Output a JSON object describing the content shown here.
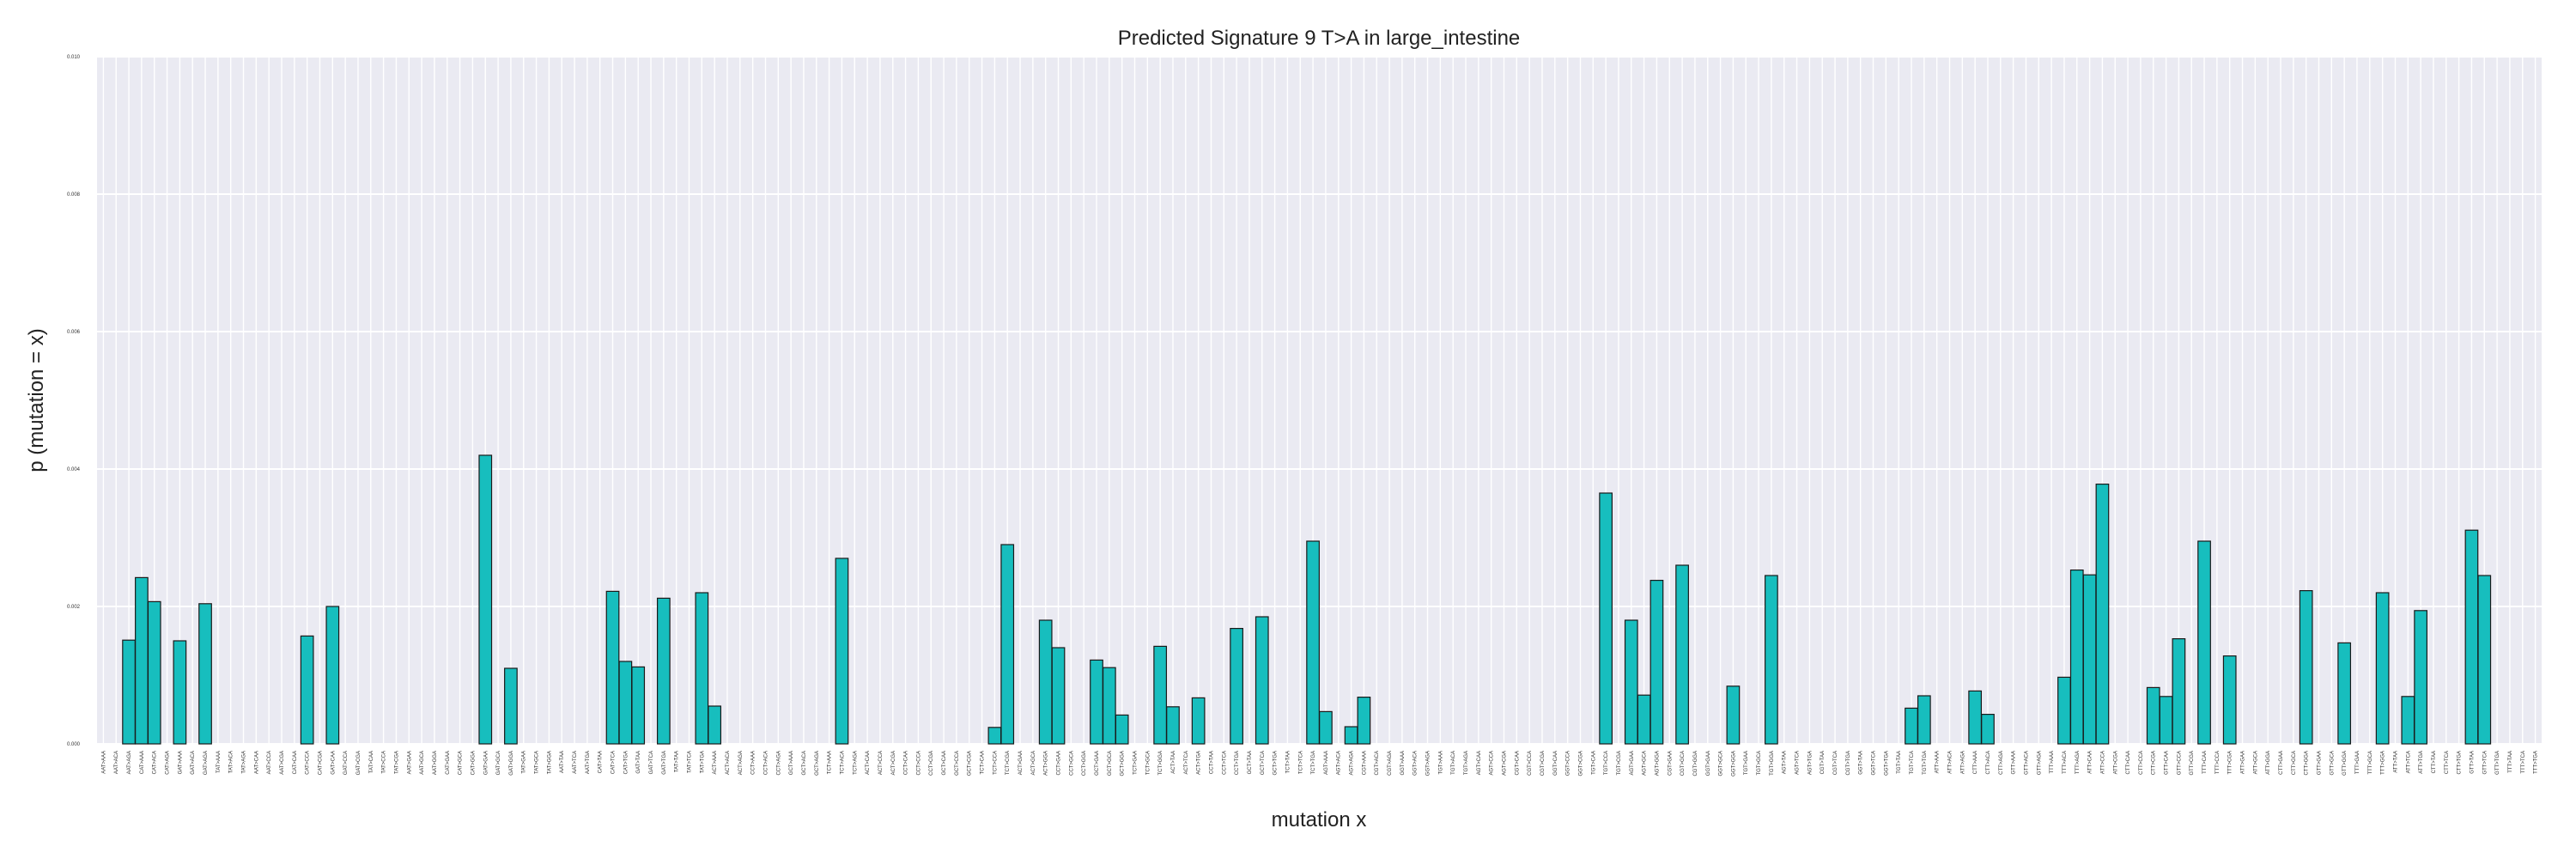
{
  "chart_data": {
    "type": "bar",
    "title": "Predicted Signature 9 T>A in large_intestine",
    "xlabel": "mutation x",
    "ylabel": "p (mutation = x)",
    "ylim": [
      0,
      0.01
    ],
    "yticks": [
      "0.000",
      "0.002",
      "0.004",
      "0.006",
      "0.008",
      "0.010"
    ],
    "grid": true,
    "colors": {
      "bar": "#17bebe",
      "edge": "#1a1a1a",
      "plot_bg": "#eaeaf2",
      "grid": "#ffffff"
    },
    "bars": [
      {
        "x": "AAT>AAA",
        "y": 0
      },
      {
        "x": "AAT>ACA",
        "y": 0
      },
      {
        "x": "AAT>AGA",
        "y": 0.00151
      },
      {
        "x": "CAT>AAA",
        "y": 0.00242
      },
      {
        "x": "CAT>ACA",
        "y": 0.00207
      },
      {
        "x": "CAT>AGA",
        "y": 0
      },
      {
        "x": "GAT>AAA",
        "y": 0.0015
      },
      {
        "x": "GAT>ACA",
        "y": 0
      },
      {
        "x": "GAT>AGA",
        "y": 0.00204
      },
      {
        "x": "TAT>AAA",
        "y": 0
      },
      {
        "x": "TAT>ACA",
        "y": 0
      },
      {
        "x": "TAT>AGA",
        "y": 0
      },
      {
        "x": "AAT>CAA",
        "y": 0
      },
      {
        "x": "AAT>CCA",
        "y": 0
      },
      {
        "x": "AAT>CGA",
        "y": 0
      },
      {
        "x": "CAT>CAA",
        "y": 0
      },
      {
        "x": "CAT>CCA",
        "y": 0.00157
      },
      {
        "x": "CAT>CGA",
        "y": 0
      },
      {
        "x": "GAT>CAA",
        "y": 0.002
      },
      {
        "x": "GAT>CCA",
        "y": 0
      },
      {
        "x": "GAT>CGA",
        "y": 0
      },
      {
        "x": "TAT>CAA",
        "y": 0
      },
      {
        "x": "TAT>CCA",
        "y": 0
      },
      {
        "x": "TAT>CGA",
        "y": 0
      },
      {
        "x": "AAT>GAA",
        "y": 0
      },
      {
        "x": "AAT>GCA",
        "y": 0
      },
      {
        "x": "AAT>GGA",
        "y": 0
      },
      {
        "x": "CAT>GAA",
        "y": 0
      },
      {
        "x": "CAT>GCA",
        "y": 0
      },
      {
        "x": "CAT>GGA",
        "y": 0
      },
      {
        "x": "GAT>GAA",
        "y": 0.0042
      },
      {
        "x": "GAT>GCA",
        "y": 0
      },
      {
        "x": "GAT>GGA",
        "y": 0.0011
      },
      {
        "x": "TAT>GAA",
        "y": 0
      },
      {
        "x": "TAT>GCA",
        "y": 0
      },
      {
        "x": "TAT>GGA",
        "y": 0
      },
      {
        "x": "AAT>TAA",
        "y": 0
      },
      {
        "x": "AAT>TCA",
        "y": 0
      },
      {
        "x": "AAT>TGA",
        "y": 0
      },
      {
        "x": "CAT>TAA",
        "y": 0
      },
      {
        "x": "CAT>TCA",
        "y": 0.00222
      },
      {
        "x": "CAT>TGA",
        "y": 0.0012
      },
      {
        "x": "GAT>TAA",
        "y": 0.00112
      },
      {
        "x": "GAT>TCA",
        "y": 0
      },
      {
        "x": "GAT>TGA",
        "y": 0.00212
      },
      {
        "x": "TAT>TAA",
        "y": 0
      },
      {
        "x": "TAT>TCA",
        "y": 0
      },
      {
        "x": "TAT>TGA",
        "y": 0.0022
      },
      {
        "x": "ACT>AAA",
        "y": 0.00055
      },
      {
        "x": "ACT>ACA",
        "y": 0
      },
      {
        "x": "ACT>AGA",
        "y": 0
      },
      {
        "x": "CCT>AAA",
        "y": 0
      },
      {
        "x": "CCT>ACA",
        "y": 0
      },
      {
        "x": "CCT>AGA",
        "y": 0
      },
      {
        "x": "GCT>AAA",
        "y": 0
      },
      {
        "x": "GCT>ACA",
        "y": 0
      },
      {
        "x": "GCT>AGA",
        "y": 0
      },
      {
        "x": "TCT>AAA",
        "y": 0
      },
      {
        "x": "TCT>ACA",
        "y": 0.0027
      },
      {
        "x": "TCT>AGA",
        "y": 0
      },
      {
        "x": "ACT>CAA",
        "y": 0
      },
      {
        "x": "ACT>CCA",
        "y": 0
      },
      {
        "x": "ACT>CGA",
        "y": 0
      },
      {
        "x": "CCT>CAA",
        "y": 0
      },
      {
        "x": "CCT>CCA",
        "y": 0
      },
      {
        "x": "CCT>CGA",
        "y": 0
      },
      {
        "x": "GCT>CAA",
        "y": 0
      },
      {
        "x": "GCT>CCA",
        "y": 0
      },
      {
        "x": "GCT>CGA",
        "y": 0
      },
      {
        "x": "TCT>CAA",
        "y": 0
      },
      {
        "x": "TCT>CCA",
        "y": 0.00024
      },
      {
        "x": "TCT>CGA",
        "y": 0.0029
      },
      {
        "x": "ACT>GAA",
        "y": 0
      },
      {
        "x": "ACT>GCA",
        "y": 0
      },
      {
        "x": "ACT>GGA",
        "y": 0.0018
      },
      {
        "x": "CCT>GAA",
        "y": 0.0014
      },
      {
        "x": "CCT>GCA",
        "y": 0
      },
      {
        "x": "CCT>GGA",
        "y": 0
      },
      {
        "x": "GCT>GAA",
        "y": 0.00122
      },
      {
        "x": "GCT>GCA",
        "y": 0.00111
      },
      {
        "x": "GCT>GGA",
        "y": 0.00042
      },
      {
        "x": "TCT>GAA",
        "y": 0
      },
      {
        "x": "TCT>GCA",
        "y": 0
      },
      {
        "x": "TCT>GGA",
        "y": 0.00142
      },
      {
        "x": "ACT>TAA",
        "y": 0.00054
      },
      {
        "x": "ACT>TCA",
        "y": 0
      },
      {
        "x": "ACT>TGA",
        "y": 0.00067
      },
      {
        "x": "CCT>TAA",
        "y": 0
      },
      {
        "x": "CCT>TCA",
        "y": 0
      },
      {
        "x": "CCT>TGA",
        "y": 0.00168
      },
      {
        "x": "GCT>TAA",
        "y": 0
      },
      {
        "x": "GCT>TCA",
        "y": 0.00185
      },
      {
        "x": "GCT>TGA",
        "y": 0
      },
      {
        "x": "TCT>TAA",
        "y": 0
      },
      {
        "x": "TCT>TCA",
        "y": 0
      },
      {
        "x": "TCT>TGA",
        "y": 0.00295
      },
      {
        "x": "AGT>AAA",
        "y": 0.00047
      },
      {
        "x": "AGT>ACA",
        "y": 0
      },
      {
        "x": "AGT>AGA",
        "y": 0.00025
      },
      {
        "x": "CGT>AAA",
        "y": 0.00068
      },
      {
        "x": "CGT>ACA",
        "y": 0
      },
      {
        "x": "CGT>AGA",
        "y": 0
      },
      {
        "x": "GGT>AAA",
        "y": 0
      },
      {
        "x": "GGT>ACA",
        "y": 0
      },
      {
        "x": "GGT>AGA",
        "y": 0
      },
      {
        "x": "TGT>AAA",
        "y": 0
      },
      {
        "x": "TGT>ACA",
        "y": 0
      },
      {
        "x": "TGT>AGA",
        "y": 0
      },
      {
        "x": "AGT>CAA",
        "y": 0
      },
      {
        "x": "AGT>CCA",
        "y": 0
      },
      {
        "x": "AGT>CGA",
        "y": 0
      },
      {
        "x": "CGT>CAA",
        "y": 0
      },
      {
        "x": "CGT>CCA",
        "y": 0
      },
      {
        "x": "CGT>CGA",
        "y": 0
      },
      {
        "x": "GGT>CAA",
        "y": 0
      },
      {
        "x": "GGT>CCA",
        "y": 0
      },
      {
        "x": "GGT>CGA",
        "y": 0
      },
      {
        "x": "TGT>CAA",
        "y": 0
      },
      {
        "x": "TGT>CCA",
        "y": 0.00365
      },
      {
        "x": "TGT>CGA",
        "y": 0
      },
      {
        "x": "AGT>GAA",
        "y": 0.0018
      },
      {
        "x": "AGT>GCA",
        "y": 0.00071
      },
      {
        "x": "AGT>GGA",
        "y": 0.00238
      },
      {
        "x": "CGT>GAA",
        "y": 0
      },
      {
        "x": "CGT>GCA",
        "y": 0.0026
      },
      {
        "x": "CGT>GGA",
        "y": 0
      },
      {
        "x": "GGT>GAA",
        "y": 0
      },
      {
        "x": "GGT>GCA",
        "y": 0
      },
      {
        "x": "GGT>GGA",
        "y": 0.00084
      },
      {
        "x": "TGT>GAA",
        "y": 0
      },
      {
        "x": "TGT>GCA",
        "y": 0
      },
      {
        "x": "TGT>GGA",
        "y": 0.00245
      },
      {
        "x": "AGT>TAA",
        "y": 0
      },
      {
        "x": "AGT>TCA",
        "y": 0
      },
      {
        "x": "AGT>TGA",
        "y": 0
      },
      {
        "x": "CGT>TAA",
        "y": 0
      },
      {
        "x": "CGT>TCA",
        "y": 0
      },
      {
        "x": "CGT>TGA",
        "y": 0
      },
      {
        "x": "GGT>TAA",
        "y": 0
      },
      {
        "x": "GGT>TCA",
        "y": 0
      },
      {
        "x": "GGT>TGA",
        "y": 0
      },
      {
        "x": "TGT>TAA",
        "y": 0
      },
      {
        "x": "TGT>TCA",
        "y": 0.00052
      },
      {
        "x": "TGT>TGA",
        "y": 0.0007
      },
      {
        "x": "ATT>AAA",
        "y": 0
      },
      {
        "x": "ATT>ACA",
        "y": 0
      },
      {
        "x": "ATT>AGA",
        "y": 0
      },
      {
        "x": "CTT>AAA",
        "y": 0.00077
      },
      {
        "x": "CTT>ACA",
        "y": 0.00043
      },
      {
        "x": "CTT>AGA",
        "y": 0
      },
      {
        "x": "GTT>AAA",
        "y": 0
      },
      {
        "x": "GTT>ACA",
        "y": 0
      },
      {
        "x": "GTT>AGA",
        "y": 0
      },
      {
        "x": "TTT>AAA",
        "y": 0
      },
      {
        "x": "TTT>ACA",
        "y": 0.00097
      },
      {
        "x": "TTT>AGA",
        "y": 0.00253
      },
      {
        "x": "ATT>CAA",
        "y": 0.00246
      },
      {
        "x": "ATT>CCA",
        "y": 0.00378
      },
      {
        "x": "ATT>CGA",
        "y": 0
      },
      {
        "x": "CTT>CAA",
        "y": 0
      },
      {
        "x": "CTT>CCA",
        "y": 0
      },
      {
        "x": "CTT>CGA",
        "y": 0.00082
      },
      {
        "x": "GTT>CAA",
        "y": 0.00069
      },
      {
        "x": "GTT>CCA",
        "y": 0.00153
      },
      {
        "x": "GTT>CGA",
        "y": 0
      },
      {
        "x": "TTT>CAA",
        "y": 0.00295
      },
      {
        "x": "TTT>CCA",
        "y": 0
      },
      {
        "x": "TTT>CGA",
        "y": 0.00128
      },
      {
        "x": "ATT>GAA",
        "y": 0
      },
      {
        "x": "ATT>GCA",
        "y": 0
      },
      {
        "x": "ATT>GGA",
        "y": 0
      },
      {
        "x": "CTT>GAA",
        "y": 0
      },
      {
        "x": "CTT>GCA",
        "y": 0
      },
      {
        "x": "CTT>GGA",
        "y": 0.00223
      },
      {
        "x": "GTT>GAA",
        "y": 0
      },
      {
        "x": "GTT>GCA",
        "y": 0
      },
      {
        "x": "GTT>GGA",
        "y": 0.00147
      },
      {
        "x": "TTT>GAA",
        "y": 0
      },
      {
        "x": "TTT>GCA",
        "y": 0
      },
      {
        "x": "TTT>GGA",
        "y": 0.0022
      },
      {
        "x": "ATT>TAA",
        "y": 0
      },
      {
        "x": "ATT>TCA",
        "y": 0.00069
      },
      {
        "x": "ATT>TGA",
        "y": 0.00194
      },
      {
        "x": "CTT>TAA",
        "y": 0
      },
      {
        "x": "CTT>TCA",
        "y": 0
      },
      {
        "x": "CTT>TGA",
        "y": 0
      },
      {
        "x": "GTT>TAA",
        "y": 0.00311
      },
      {
        "x": "GTT>TCA",
        "y": 0.00245
      },
      {
        "x": "GTT>TGA",
        "y": 0
      },
      {
        "x": "TTT>TAA",
        "y": 0
      },
      {
        "x": "TTT>TCA",
        "y": 0
      },
      {
        "x": "TTT>TGA",
        "y": 0
      }
    ]
  }
}
